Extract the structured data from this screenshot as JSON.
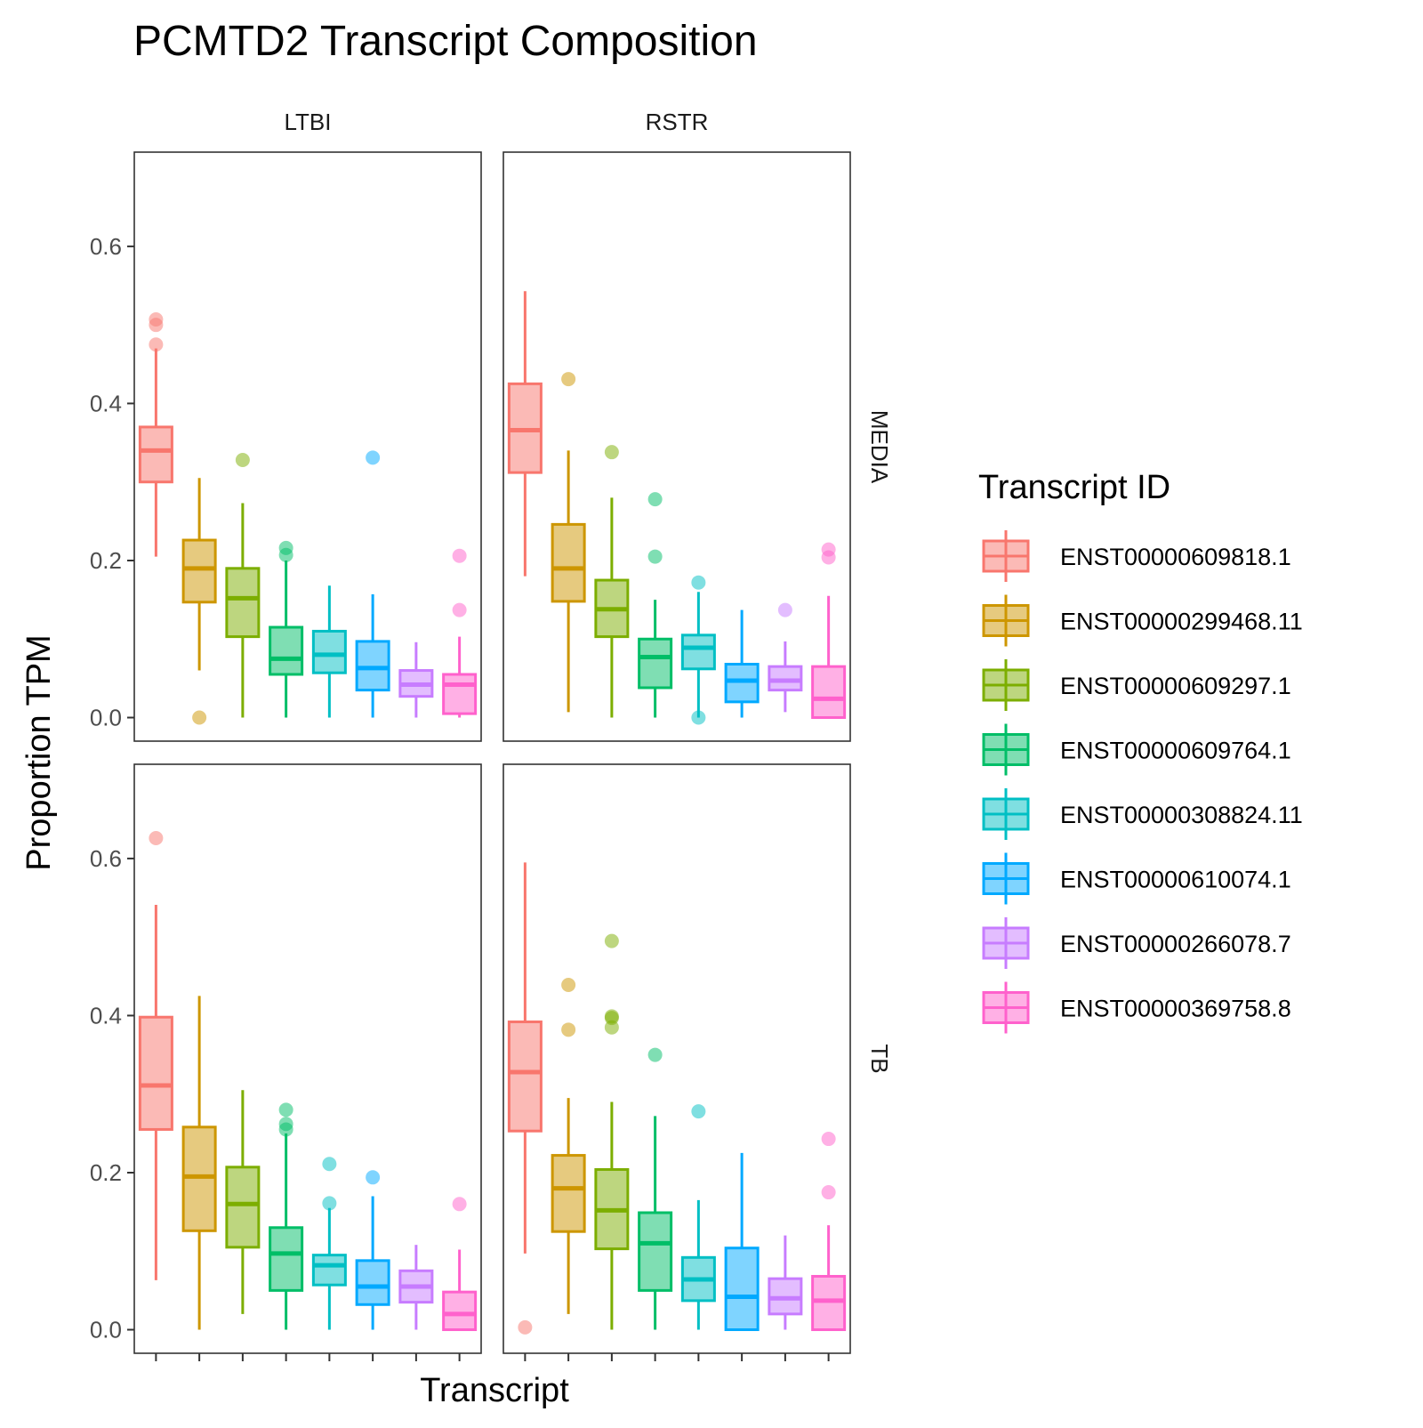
{
  "chart_data": {
    "type": "boxplot",
    "title": "PCMTD2 Transcript Composition",
    "xlabel": "Transcript",
    "ylabel": "Proportion TPM",
    "ylim": [
      -0.03,
      0.72
    ],
    "yticks": [
      0.0,
      0.2,
      0.4,
      0.6
    ],
    "ytick_labels": [
      "0.0",
      "0.2",
      "0.4",
      "0.6"
    ],
    "grid": false,
    "facet_cols": [
      "LTBI",
      "RSTR"
    ],
    "facet_rows": [
      "MEDIA",
      "TB"
    ],
    "legend": {
      "title": "Transcript ID",
      "position": "right"
    },
    "series": [
      {
        "name": "ENST00000609818.1",
        "color": "#F8766D"
      },
      {
        "name": "ENST00000299468.11",
        "color": "#CD9600"
      },
      {
        "name": "ENST00000609297.1",
        "color": "#7CAE00"
      },
      {
        "name": "ENST00000609764.1",
        "color": "#00BE67"
      },
      {
        "name": "ENST00000308824.11",
        "color": "#00BFC4"
      },
      {
        "name": "ENST00000610074.1",
        "color": "#00A9FF"
      },
      {
        "name": "ENST00000266078.7",
        "color": "#C77CFF"
      },
      {
        "name": "ENST00000369758.8",
        "color": "#FF61CC"
      }
    ],
    "panels": [
      {
        "col": "LTBI",
        "row": "MEDIA",
        "boxes": [
          {
            "whisker_low": 0.205,
            "q1": 0.3,
            "median": 0.34,
            "q3": 0.37,
            "whisker_high": 0.47,
            "outliers": [
              0.475,
              0.5,
              0.507
            ]
          },
          {
            "whisker_low": 0.06,
            "q1": 0.147,
            "median": 0.19,
            "q3": 0.226,
            "whisker_high": 0.305,
            "outliers": [
              0.0
            ]
          },
          {
            "whisker_low": 0.0,
            "q1": 0.103,
            "median": 0.152,
            "q3": 0.19,
            "whisker_high": 0.273,
            "outliers": [
              0.328
            ]
          },
          {
            "whisker_low": 0.0,
            "q1": 0.055,
            "median": 0.075,
            "q3": 0.115,
            "whisker_high": 0.2,
            "outliers": [
              0.207,
              0.216
            ]
          },
          {
            "whisker_low": 0.0,
            "q1": 0.057,
            "median": 0.08,
            "q3": 0.11,
            "whisker_high": 0.168,
            "outliers": []
          },
          {
            "whisker_low": 0.0,
            "q1": 0.035,
            "median": 0.063,
            "q3": 0.097,
            "whisker_high": 0.157,
            "outliers": [
              0.331
            ]
          },
          {
            "whisker_low": 0.0,
            "q1": 0.027,
            "median": 0.042,
            "q3": 0.06,
            "whisker_high": 0.096,
            "outliers": []
          },
          {
            "whisker_low": 0.0,
            "q1": 0.005,
            "median": 0.042,
            "q3": 0.055,
            "whisker_high": 0.103,
            "outliers": [
              0.137,
              0.206
            ]
          }
        ]
      },
      {
        "col": "RSTR",
        "row": "MEDIA",
        "boxes": [
          {
            "whisker_low": 0.18,
            "q1": 0.312,
            "median": 0.366,
            "q3": 0.425,
            "whisker_high": 0.543,
            "outliers": []
          },
          {
            "whisker_low": 0.007,
            "q1": 0.148,
            "median": 0.19,
            "q3": 0.246,
            "whisker_high": 0.34,
            "outliers": [
              0.431
            ]
          },
          {
            "whisker_low": 0.0,
            "q1": 0.103,
            "median": 0.138,
            "q3": 0.175,
            "whisker_high": 0.28,
            "outliers": [
              0.338
            ]
          },
          {
            "whisker_low": 0.0,
            "q1": 0.038,
            "median": 0.077,
            "q3": 0.1,
            "whisker_high": 0.15,
            "outliers": [
              0.205,
              0.278
            ]
          },
          {
            "whisker_low": 0.0,
            "q1": 0.062,
            "median": 0.089,
            "q3": 0.105,
            "whisker_high": 0.16,
            "outliers": [
              0.0,
              0.172
            ]
          },
          {
            "whisker_low": 0.0,
            "q1": 0.02,
            "median": 0.047,
            "q3": 0.068,
            "whisker_high": 0.137,
            "outliers": []
          },
          {
            "whisker_low": 0.007,
            "q1": 0.035,
            "median": 0.047,
            "q3": 0.065,
            "whisker_high": 0.097,
            "outliers": [
              0.137
            ]
          },
          {
            "whisker_low": 0.0,
            "q1": 0.0,
            "median": 0.024,
            "q3": 0.065,
            "whisker_high": 0.155,
            "outliers": [
              0.204,
              0.214
            ]
          }
        ]
      },
      {
        "col": "LTBI",
        "row": "TB",
        "boxes": [
          {
            "whisker_low": 0.063,
            "q1": 0.255,
            "median": 0.311,
            "q3": 0.398,
            "whisker_high": 0.541,
            "outliers": [
              0.626
            ]
          },
          {
            "whisker_low": 0.0,
            "q1": 0.126,
            "median": 0.195,
            "q3": 0.258,
            "whisker_high": 0.425,
            "outliers": []
          },
          {
            "whisker_low": 0.02,
            "q1": 0.105,
            "median": 0.16,
            "q3": 0.207,
            "whisker_high": 0.305,
            "outliers": []
          },
          {
            "whisker_low": 0.0,
            "q1": 0.05,
            "median": 0.097,
            "q3": 0.13,
            "whisker_high": 0.25,
            "outliers": [
              0.255,
              0.262,
              0.28
            ]
          },
          {
            "whisker_low": 0.0,
            "q1": 0.057,
            "median": 0.082,
            "q3": 0.095,
            "whisker_high": 0.155,
            "outliers": [
              0.161,
              0.211
            ]
          },
          {
            "whisker_low": 0.0,
            "q1": 0.032,
            "median": 0.055,
            "q3": 0.088,
            "whisker_high": 0.17,
            "outliers": [
              0.194
            ]
          },
          {
            "whisker_low": 0.0,
            "q1": 0.035,
            "median": 0.055,
            "q3": 0.075,
            "whisker_high": 0.108,
            "outliers": []
          },
          {
            "whisker_low": 0.0,
            "q1": 0.0,
            "median": 0.02,
            "q3": 0.048,
            "whisker_high": 0.102,
            "outliers": [
              0.16
            ]
          }
        ]
      },
      {
        "col": "RSTR",
        "row": "TB",
        "boxes": [
          {
            "whisker_low": 0.097,
            "q1": 0.253,
            "median": 0.328,
            "q3": 0.392,
            "whisker_high": 0.595,
            "outliers": [
              0.003
            ]
          },
          {
            "whisker_low": 0.02,
            "q1": 0.125,
            "median": 0.18,
            "q3": 0.222,
            "whisker_high": 0.295,
            "outliers": [
              0.382,
              0.439
            ]
          },
          {
            "whisker_low": 0.0,
            "q1": 0.103,
            "median": 0.152,
            "q3": 0.204,
            "whisker_high": 0.29,
            "outliers": [
              0.385,
              0.397,
              0.399,
              0.495
            ]
          },
          {
            "whisker_low": 0.0,
            "q1": 0.05,
            "median": 0.11,
            "q3": 0.149,
            "whisker_high": 0.272,
            "outliers": [
              0.35
            ]
          },
          {
            "whisker_low": 0.0,
            "q1": 0.037,
            "median": 0.064,
            "q3": 0.092,
            "whisker_high": 0.165,
            "outliers": [
              0.278
            ]
          },
          {
            "whisker_low": 0.0,
            "q1": 0.0,
            "median": 0.042,
            "q3": 0.104,
            "whisker_high": 0.225,
            "outliers": []
          },
          {
            "whisker_low": 0.0,
            "q1": 0.02,
            "median": 0.04,
            "q3": 0.065,
            "whisker_high": 0.12,
            "outliers": []
          },
          {
            "whisker_low": 0.0,
            "q1": 0.0,
            "median": 0.037,
            "q3": 0.068,
            "whisker_high": 0.133,
            "outliers": [
              0.175,
              0.243
            ]
          }
        ]
      }
    ]
  }
}
